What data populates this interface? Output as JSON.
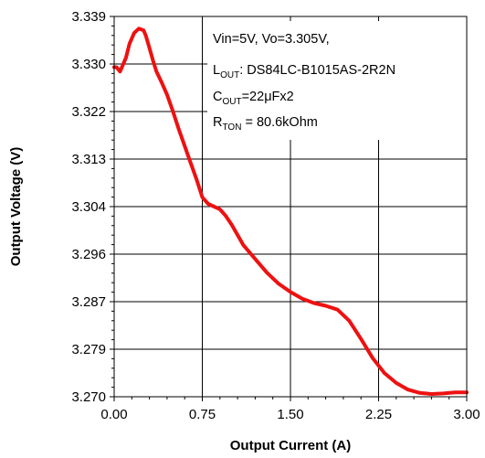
{
  "chart_data": {
    "type": "line",
    "title": "",
    "xlabel": "Output Current (A)",
    "ylabel": "Output Voltage (V)",
    "xlim": [
      0,
      3
    ],
    "ylim": [
      3.27,
      3.339
    ],
    "x_ticks": [
      "0.00",
      "0.75",
      "1.50",
      "2.25",
      "3.00"
    ],
    "y_ticks": [
      "3.339",
      "3.330",
      "3.322",
      "3.313",
      "3.304",
      "3.296",
      "3.287",
      "3.279",
      "3.270"
    ],
    "grid": true,
    "annotation": {
      "line1": "Vin=5V, Vo=3.305V,",
      "line2_main": "L",
      "line2_sub": "OUT",
      "line2_rest": ": DS84LC-B1015AS-2R2N",
      "line3_main": "C",
      "line3_sub": "OUT",
      "line3_rest": "=22μFx2",
      "line4_main": "R",
      "line4_sub": "TON",
      "line4_rest": " = 80.6kOhm"
    },
    "series": [
      {
        "color": "#ee1111",
        "x": [
          0.0,
          0.02,
          0.05,
          0.07,
          0.1,
          0.13,
          0.17,
          0.21,
          0.25,
          0.27,
          0.3,
          0.33,
          0.36,
          0.4,
          0.45,
          0.5,
          0.55,
          0.6,
          0.65,
          0.7,
          0.75,
          0.8,
          0.85,
          0.9,
          0.95,
          1.0,
          1.1,
          1.2,
          1.3,
          1.4,
          1.5,
          1.6,
          1.7,
          1.8,
          1.9,
          2.0,
          2.1,
          2.2,
          2.3,
          2.4,
          2.5,
          2.6,
          2.7,
          2.8,
          2.9,
          3.0
        ],
        "y": [
          3.3298,
          3.3298,
          3.329,
          3.33,
          3.3315,
          3.334,
          3.336,
          3.3368,
          3.3365,
          3.3355,
          3.3333,
          3.331,
          3.329,
          3.3272,
          3.3248,
          3.3218,
          3.3185,
          3.3155,
          3.3125,
          3.3095,
          3.3062,
          3.305,
          3.3045,
          3.304,
          3.3028,
          3.3012,
          3.2975,
          3.295,
          3.2925,
          3.2905,
          3.289,
          3.2878,
          3.287,
          3.2865,
          3.2858,
          3.2838,
          3.2805,
          3.277,
          3.2743,
          3.2725,
          3.2713,
          3.2707,
          3.2705,
          3.2706,
          3.2708,
          3.2708
        ]
      }
    ],
    "colors": {
      "series": "#ee1111",
      "grid": "#000000",
      "background": "#ffffff"
    }
  }
}
